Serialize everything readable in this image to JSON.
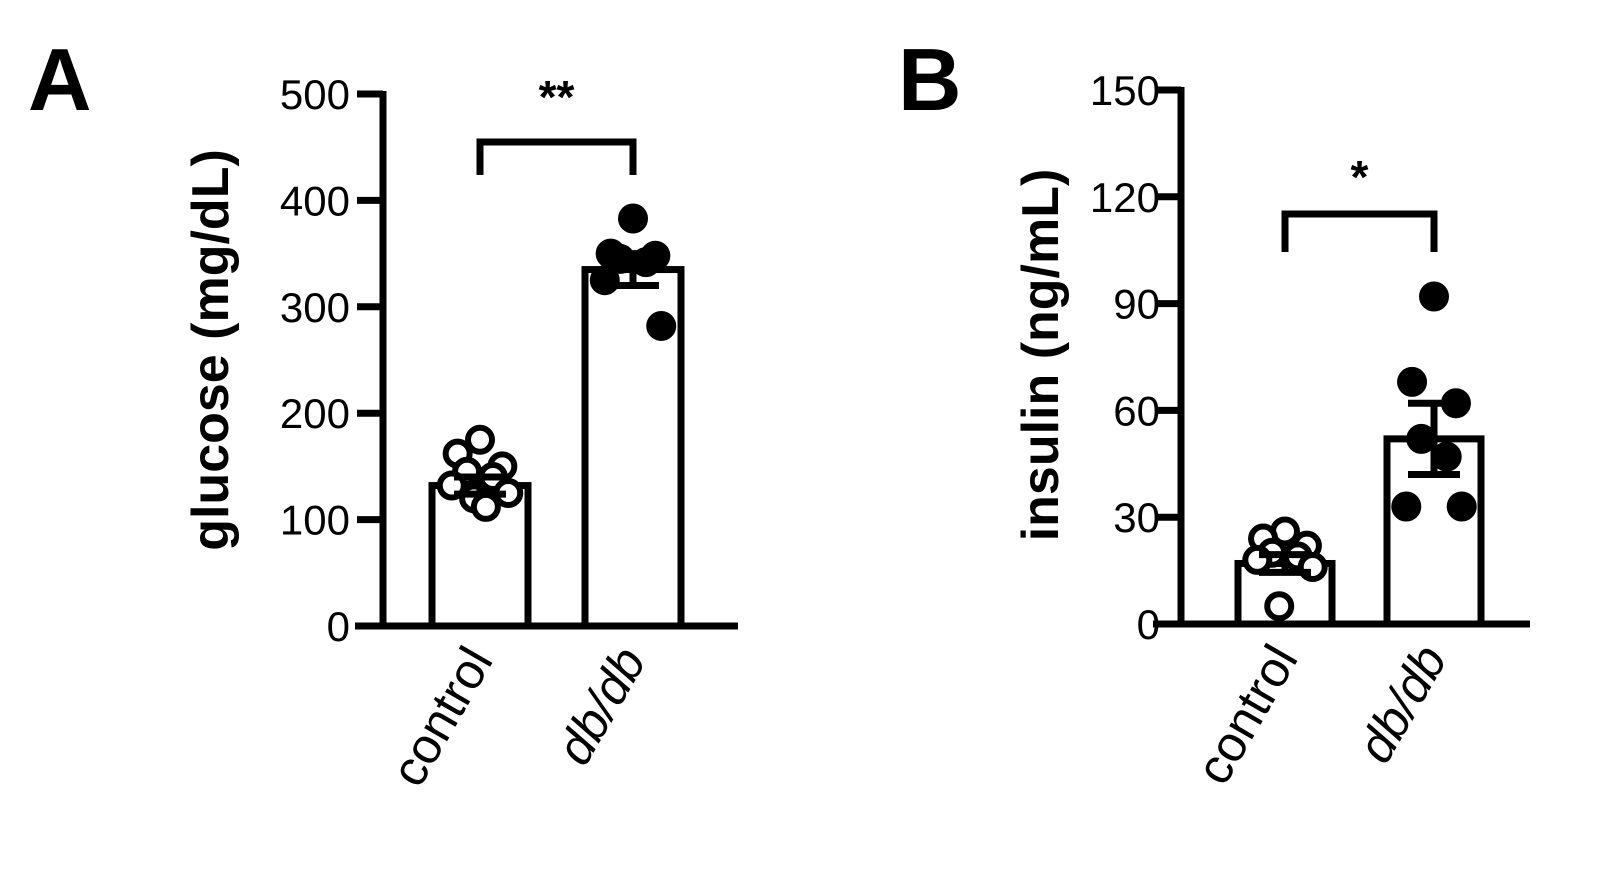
{
  "chart_data": [
    {
      "type": "bar",
      "panel": "A",
      "ylabel": "glucose (mg/dL)",
      "ylim": [
        0,
        500
      ],
      "yticks": [
        0,
        100,
        200,
        300,
        400,
        500
      ],
      "categories": [
        "control",
        "db/db"
      ],
      "values": [
        132,
        335
      ],
      "sem": [
        8,
        15
      ],
      "points": [
        [
          175,
          162,
          150,
          145,
          140,
          132,
          125,
          120,
          112
        ],
        [
          383,
          350,
          348,
          345,
          342,
          325,
          282
        ]
      ],
      "significance": "**",
      "colors": {
        "control": "#ffffff",
        "db/db": "#ffffff",
        "control_points": "#ffffff",
        "db/db_points": "#000000"
      },
      "legend": "none",
      "grid": false
    },
    {
      "type": "bar",
      "panel": "B",
      "ylabel": "insulin (ng/mL)",
      "ylim": [
        0,
        150
      ],
      "yticks": [
        0,
        30,
        60,
        90,
        120,
        150
      ],
      "categories": [
        "control",
        "db/db"
      ],
      "values": [
        17,
        52
      ],
      "sem": [
        2.5,
        10
      ],
      "points": [
        [
          26,
          24,
          22,
          20,
          19,
          18,
          16,
          5
        ],
        [
          92,
          68,
          62,
          52,
          47,
          33,
          33
        ]
      ],
      "significance": "*",
      "colors": {
        "control": "#ffffff",
        "db/db": "#ffffff",
        "control_points": "#ffffff",
        "db/db_points": "#000000"
      },
      "legend": "none",
      "grid": false
    }
  ]
}
